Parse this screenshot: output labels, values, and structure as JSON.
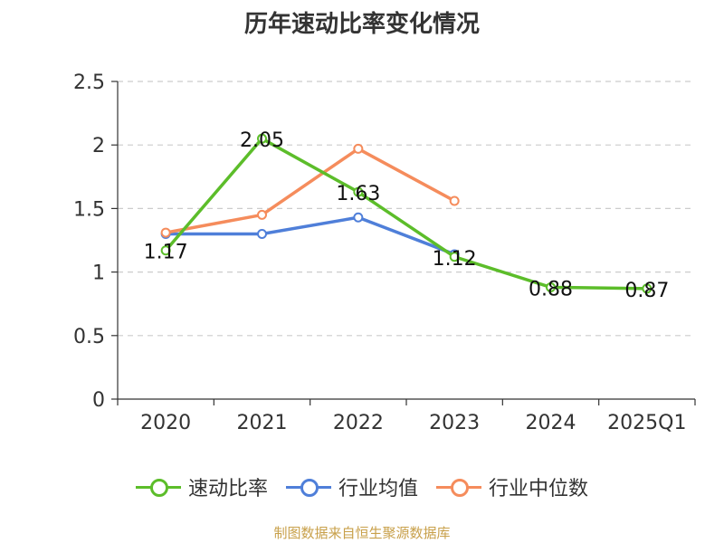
{
  "chart_data": {
    "type": "line",
    "title": "历年速动比率变化情况",
    "categories": [
      "2020",
      "2021",
      "2022",
      "2023",
      "2024",
      "2025Q1"
    ],
    "series": [
      {
        "name": "速动比率",
        "color": "#5cbd2a",
        "values": [
          1.17,
          2.05,
          1.63,
          1.12,
          0.88,
          0.87
        ],
        "data_labels": [
          "1.17",
          "2.05",
          "1.63",
          "1.12",
          "0.88",
          "0.87"
        ]
      },
      {
        "name": "行业均值",
        "color": "#4f7fd9",
        "values": [
          1.3,
          1.3,
          1.43,
          1.14,
          null,
          null
        ]
      },
      {
        "name": "行业中位数",
        "color": "#f58c5c",
        "values": [
          1.31,
          1.45,
          1.97,
          1.56,
          null,
          null
        ]
      }
    ],
    "ylim": [
      0,
      2.5
    ],
    "yticks": [
      "0",
      "0.5",
      "1",
      "1.5",
      "2",
      "2.5"
    ],
    "grid": true,
    "legend_position": "bottom",
    "source": "制图数据来自恒生聚源数据库"
  }
}
